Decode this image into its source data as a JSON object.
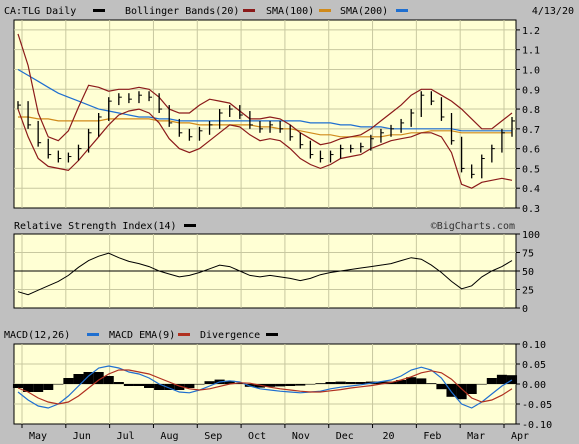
{
  "date": "4/13/20",
  "watermark": "©BigCharts.com",
  "colors": {
    "price": "#000000",
    "bollinger": "#8b1a1a",
    "sma100": "#d08a1a",
    "sma200": "#1f6fd0",
    "rsi": "#000000",
    "macd": "#1f6fd0",
    "ema": "#b03020",
    "divergence": "#000000"
  },
  "legends": {
    "price": [
      {
        "label": "CA:TLG Daily",
        "swatch": "#000000"
      },
      {
        "label": "Bollinger Bands(20)",
        "swatch": "#8b1a1a"
      },
      {
        "label": "SMA(100)",
        "swatch": "#d08a1a"
      },
      {
        "label": "SMA(200)",
        "swatch": "#1f6fd0"
      }
    ],
    "rsi": [
      {
        "label": "Relative Strength Index(14)",
        "swatch": "#000000"
      }
    ],
    "macd": [
      {
        "label": "MACD(12,26)",
        "swatch": "#1f6fd0"
      },
      {
        "label": "MACD EMA(9)",
        "swatch": "#b03020"
      },
      {
        "label": "Divergence",
        "swatch": "#000000"
      }
    ]
  },
  "chart_data": [
    {
      "type": "line",
      "panel": "price",
      "ylim": [
        0.3,
        1.25
      ],
      "yticks": [
        "1.2",
        "1.1",
        "1.0",
        "0.9",
        "0.8",
        "0.7",
        "0.6",
        "0.5",
        "0.4",
        "0.3"
      ],
      "xticks": [
        "May",
        "Jun",
        "Jul",
        "Aug",
        "Sep",
        "Oct",
        "Nov",
        "Dec",
        "20",
        "Feb",
        "Mar",
        "Apr"
      ],
      "grid": true,
      "series": [
        {
          "name": "CA:TLG Daily",
          "values": [
            0.82,
            0.72,
            0.63,
            0.57,
            0.55,
            0.56,
            0.6,
            0.68,
            0.76,
            0.84,
            0.86,
            0.85,
            0.87,
            0.86,
            0.8,
            0.73,
            0.68,
            0.66,
            0.69,
            0.72,
            0.78,
            0.8,
            0.77,
            0.72,
            0.7,
            0.72,
            0.7,
            0.66,
            0.62,
            0.57,
            0.55,
            0.57,
            0.6,
            0.6,
            0.61,
            0.65,
            0.68,
            0.7,
            0.73,
            0.78,
            0.87,
            0.84,
            0.76,
            0.64,
            0.5,
            0.47,
            0.55,
            0.6,
            0.68,
            0.74
          ]
        },
        {
          "name": "Bollinger Bands(20) upper",
          "values": [
            1.18,
            1.02,
            0.78,
            0.66,
            0.64,
            0.69,
            0.81,
            0.92,
            0.91,
            0.89,
            0.9,
            0.9,
            0.91,
            0.9,
            0.86,
            0.8,
            0.78,
            0.78,
            0.82,
            0.85,
            0.84,
            0.83,
            0.79,
            0.75,
            0.75,
            0.76,
            0.75,
            0.72,
            0.68,
            0.65,
            0.62,
            0.63,
            0.65,
            0.66,
            0.67,
            0.7,
            0.74,
            0.78,
            0.82,
            0.87,
            0.9,
            0.9,
            0.87,
            0.84,
            0.8,
            0.75,
            0.7,
            0.7,
            0.74,
            0.78
          ]
        },
        {
          "name": "Bollinger Bands(20) lower",
          "values": [
            0.8,
            0.66,
            0.55,
            0.51,
            0.5,
            0.49,
            0.54,
            0.6,
            0.66,
            0.72,
            0.77,
            0.79,
            0.8,
            0.78,
            0.73,
            0.65,
            0.6,
            0.58,
            0.6,
            0.64,
            0.68,
            0.72,
            0.71,
            0.67,
            0.64,
            0.65,
            0.64,
            0.6,
            0.55,
            0.52,
            0.5,
            0.52,
            0.55,
            0.56,
            0.57,
            0.6,
            0.62,
            0.64,
            0.65,
            0.66,
            0.68,
            0.68,
            0.66,
            0.58,
            0.42,
            0.4,
            0.43,
            0.44,
            0.45,
            0.44
          ]
        },
        {
          "name": "SMA(100)",
          "values": [
            0.76,
            0.76,
            0.75,
            0.75,
            0.74,
            0.74,
            0.74,
            0.74,
            0.74,
            0.75,
            0.75,
            0.75,
            0.75,
            0.75,
            0.74,
            0.74,
            0.73,
            0.73,
            0.72,
            0.72,
            0.72,
            0.72,
            0.72,
            0.72,
            0.71,
            0.71,
            0.7,
            0.7,
            0.69,
            0.68,
            0.67,
            0.67,
            0.66,
            0.66,
            0.66,
            0.66,
            0.66,
            0.67,
            0.67,
            0.68,
            0.68,
            0.69,
            0.69,
            0.69,
            0.68,
            0.68,
            0.68,
            0.68,
            0.68,
            0.68
          ]
        },
        {
          "name": "SMA(200)",
          "values": [
            1.0,
            0.97,
            0.94,
            0.91,
            0.88,
            0.86,
            0.84,
            0.82,
            0.8,
            0.79,
            0.78,
            0.77,
            0.76,
            0.76,
            0.75,
            0.75,
            0.74,
            0.74,
            0.74,
            0.74,
            0.74,
            0.74,
            0.74,
            0.74,
            0.74,
            0.74,
            0.74,
            0.74,
            0.74,
            0.73,
            0.73,
            0.73,
            0.72,
            0.72,
            0.71,
            0.71,
            0.71,
            0.7,
            0.7,
            0.7,
            0.7,
            0.7,
            0.7,
            0.7,
            0.69,
            0.69,
            0.69,
            0.69,
            0.69,
            0.69
          ]
        }
      ]
    },
    {
      "type": "line",
      "panel": "rsi",
      "ylim": [
        0,
        100
      ],
      "yticks": [
        "100",
        "75",
        "50",
        "25",
        "0"
      ],
      "reference_line": 50,
      "series": [
        {
          "name": "Relative Strength Index(14)",
          "values": [
            22,
            18,
            24,
            30,
            36,
            44,
            55,
            64,
            70,
            74,
            68,
            63,
            60,
            56,
            50,
            46,
            42,
            44,
            48,
            53,
            58,
            56,
            50,
            44,
            42,
            44,
            42,
            40,
            37,
            40,
            45,
            48,
            50,
            52,
            54,
            56,
            58,
            60,
            64,
            68,
            66,
            58,
            48,
            36,
            26,
            30,
            42,
            50,
            56,
            64
          ]
        }
      ]
    },
    {
      "type": "line",
      "panel": "macd",
      "ylim": [
        -0.1,
        0.1
      ],
      "yticks": [
        "0.10",
        "0.05",
        "0.00",
        "-0.05",
        "-0.10"
      ],
      "series": [
        {
          "name": "MACD(12,26)",
          "values": [
            -0.02,
            -0.04,
            -0.055,
            -0.06,
            -0.05,
            -0.03,
            -0.005,
            0.02,
            0.04,
            0.045,
            0.04,
            0.03,
            0.025,
            0.015,
            0.0,
            -0.01,
            -0.02,
            -0.022,
            -0.015,
            -0.005,
            0.005,
            0.008,
            0.005,
            -0.005,
            -0.012,
            -0.015,
            -0.018,
            -0.02,
            -0.022,
            -0.02,
            -0.018,
            -0.012,
            -0.008,
            -0.005,
            -0.002,
            0.002,
            0.006,
            0.01,
            0.02,
            0.035,
            0.042,
            0.035,
            0.015,
            -0.02,
            -0.05,
            -0.06,
            -0.045,
            -0.025,
            -0.005,
            0.01
          ]
        },
        {
          "name": "MACD EMA(9)",
          "values": [
            -0.01,
            -0.02,
            -0.035,
            -0.045,
            -0.05,
            -0.045,
            -0.03,
            -0.01,
            0.01,
            0.025,
            0.035,
            0.035,
            0.03,
            0.025,
            0.015,
            0.005,
            -0.005,
            -0.012,
            -0.015,
            -0.012,
            -0.006,
            0.0,
            0.003,
            0.002,
            -0.003,
            -0.008,
            -0.012,
            -0.015,
            -0.018,
            -0.02,
            -0.02,
            -0.017,
            -0.014,
            -0.01,
            -0.007,
            -0.004,
            0.0,
            0.004,
            0.01,
            0.018,
            0.028,
            0.033,
            0.028,
            0.012,
            -0.012,
            -0.035,
            -0.045,
            -0.04,
            -0.028,
            -0.012
          ]
        },
        {
          "name": "Divergence",
          "values": [
            -0.01,
            -0.02,
            -0.02,
            -0.015,
            0.0,
            0.015,
            0.025,
            0.03,
            0.03,
            0.02,
            0.005,
            -0.005,
            -0.005,
            -0.01,
            -0.015,
            -0.015,
            -0.015,
            -0.01,
            0.0,
            0.007,
            0.011,
            0.008,
            0.002,
            -0.007,
            -0.009,
            -0.007,
            -0.006,
            -0.005,
            -0.004,
            0.0,
            0.002,
            0.005,
            0.006,
            0.005,
            0.005,
            0.006,
            0.006,
            0.006,
            0.01,
            0.017,
            0.014,
            0.002,
            -0.013,
            -0.032,
            -0.038,
            -0.025,
            0.0,
            0.015,
            0.023,
            0.022
          ]
        }
      ]
    }
  ]
}
